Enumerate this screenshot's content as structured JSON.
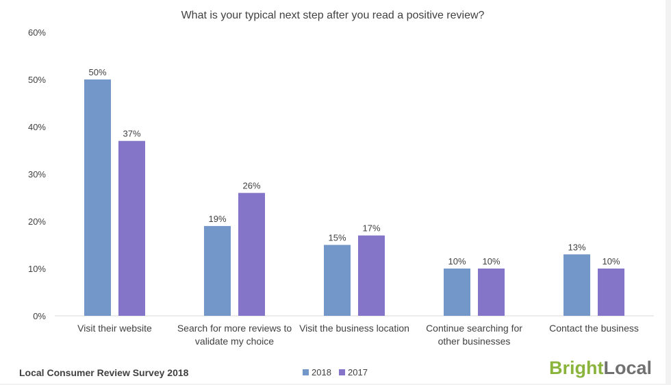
{
  "chart_data": {
    "type": "bar",
    "title": "What is your typical next step after you read a positive review?",
    "categories": [
      [
        "Visit their website"
      ],
      [
        "Search for more reviews to",
        "validate my choice"
      ],
      [
        "Visit the business location"
      ],
      [
        "Continue searching for",
        "other businesses"
      ],
      [
        "Contact the business"
      ]
    ],
    "series": [
      {
        "name": "2018",
        "color": "#7397c9",
        "values": [
          50,
          19,
          15,
          10,
          13
        ]
      },
      {
        "name": "2017",
        "color": "#8575c8",
        "values": [
          37,
          26,
          17,
          10,
          10
        ]
      }
    ],
    "ylim": [
      0,
      60
    ],
    "yticks": [
      0,
      10,
      20,
      30,
      40,
      50,
      60
    ],
    "tick_suffix": "%",
    "label_suffix": "%",
    "legend_position": "bottom-center",
    "grid": false
  },
  "footer": {
    "survey_label": "Local Consumer Review Survey 2018"
  },
  "brand": {
    "part1": "Bright",
    "part2": "Local",
    "color1": "#8ab43c",
    "color2": "#707070"
  }
}
